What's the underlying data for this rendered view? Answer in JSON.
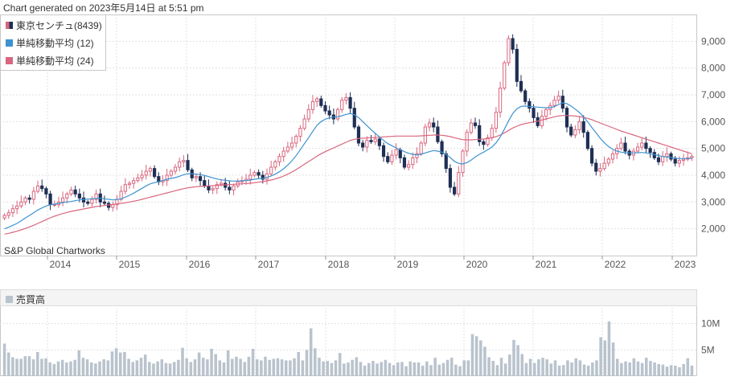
{
  "header": {
    "generated": "Chart generated on 2023年5月14日 at 5:51 pm"
  },
  "legend": [
    {
      "label": "東京センチュ(8439)",
      "color": "#1f2f55"
    },
    {
      "label": "単純移動平均 (12)",
      "color": "#3d93d0"
    },
    {
      "label": "単純移動平均 (24)",
      "color": "#d9667e"
    }
  ],
  "credit": "S&P Global Chartworks",
  "volume_panel": {
    "label": "売買高",
    "color": "#b9c3cd"
  },
  "colors": {
    "up": "#d9667e",
    "down": "#1f2f55",
    "ma12": "#3d93d0",
    "ma24": "#d9667e",
    "grid": "#e1e1e1",
    "volume": "#b9c3cd"
  },
  "chart_data": {
    "type": "candlestick",
    "title": "東京センチュ(8439)",
    "x_ticks": [
      "2014",
      "2015",
      "2016",
      "2017",
      "2018",
      "2019",
      "2020",
      "2021",
      "2022",
      "2023"
    ],
    "y_ticks": [
      "2,000",
      "3,000",
      "4,000",
      "5,000",
      "6,000",
      "7,000",
      "8,000",
      "9,000"
    ],
    "ylim": [
      1000,
      10000
    ],
    "volume_ticks": [
      "5M",
      "10M"
    ],
    "volume_max": 13000000,
    "price_close": [
      2500,
      2600,
      2750,
      2850,
      3000,
      3150,
      3100,
      3400,
      3600,
      3500,
      3300,
      2900,
      2900,
      3000,
      3150,
      3300,
      3450,
      3300,
      3150,
      3000,
      2950,
      3100,
      3300,
      3000,
      2950,
      2800,
      2900,
      3100,
      3400,
      3650,
      3700,
      3800,
      3900,
      4000,
      4150,
      4250,
      3950,
      3750,
      3800,
      4000,
      4150,
      4300,
      4500,
      4550,
      4200,
      3900,
      3950,
      3800,
      3600,
      3450,
      3500,
      3650,
      3700,
      3550,
      3450,
      3600,
      3750,
      3800,
      3850,
      4000,
      4100,
      4000,
      3850,
      4050,
      4300,
      4500,
      4700,
      4900,
      5050,
      5200,
      5450,
      5750,
      6100,
      6450,
      6750,
      6850,
      6600,
      6400,
      6250,
      6100,
      6450,
      6800,
      6900,
      6500,
      5800,
      5200,
      5050,
      5300,
      5250,
      5350,
      5100,
      4700,
      4500,
      4750,
      4950,
      4650,
      4300,
      4400,
      4650,
      4800,
      5200,
      5800,
      5950,
      5800,
      5250,
      4800,
      4250,
      3550,
      3300,
      4100,
      4900,
      5600,
      5950,
      5850,
      5250,
      5150,
      5400,
      5750,
      6350,
      7250,
      8200,
      9100,
      8700,
      7500,
      7150,
      6750,
      6500,
      6150,
      5850,
      6200,
      6450,
      6600,
      6800,
      6950,
      6500,
      5800,
      5500,
      5700,
      6000,
      5600,
      5000,
      4450,
      4150,
      4250,
      4450,
      4600,
      4800,
      5000,
      5200,
      4900,
      4750,
      4900,
      5050,
      5200,
      5000,
      4850,
      4650,
      4500,
      4700,
      4800,
      4600,
      4450,
      4550,
      4600,
      4650,
      4700
    ],
    "ma12": [
      2000,
      2060,
      2130,
      2200,
      2300,
      2400,
      2500,
      2600,
      2700,
      2780,
      2850,
      2900,
      2920,
      2950,
      2980,
      3000,
      3020,
      3050,
      3080,
      3100,
      3110,
      3120,
      3130,
      3140,
      3120,
      3100,
      3080,
      3090,
      3120,
      3180,
      3250,
      3330,
      3420,
      3510,
      3600,
      3680,
      3720,
      3760,
      3800,
      3850,
      3880,
      3910,
      3960,
      4020,
      4050,
      4050,
      4040,
      4020,
      3990,
      3950,
      3900,
      3860,
      3830,
      3810,
      3790,
      3780,
      3780,
      3790,
      3800,
      3820,
      3850,
      3870,
      3880,
      3920,
      3970,
      4040,
      4130,
      4240,
      4380,
      4540,
      4730,
      4950,
      5180,
      5400,
      5640,
      5860,
      6000,
      6090,
      6140,
      6170,
      6180,
      6220,
      6270,
      6300,
      6260,
      6150,
      6000,
      5850,
      5700,
      5560,
      5430,
      5300,
      5180,
      5100,
      5020,
      4950,
      4880,
      4820,
      4780,
      4760,
      4780,
      4830,
      4880,
      4920,
      4900,
      4860,
      4780,
      4660,
      4520,
      4440,
      4420,
      4470,
      4560,
      4680,
      4780,
      4860,
      4950,
      5050,
      5210,
      5430,
      5720,
      6030,
      6300,
      6480,
      6570,
      6580,
      6560,
      6560,
      6540,
      6530,
      6520,
      6520,
      6560,
      6640,
      6700,
      6670,
      6580,
      6470,
      6340,
      6180,
      5990,
      5780,
      5580,
      5380,
      5210,
      5070,
      4970,
      4900,
      4860,
      4840,
      4830,
      4830,
      4840,
      4850,
      4830,
      4800,
      4770,
      4730,
      4700,
      4680,
      4660,
      4640,
      4620,
      4620,
      4620,
      4630
    ],
    "ma24": [
      1800,
      1830,
      1870,
      1910,
      1960,
      2010,
      2070,
      2130,
      2200,
      2270,
      2340,
      2410,
      2470,
      2520,
      2570,
      2610,
      2650,
      2680,
      2710,
      2740,
      2770,
      2800,
      2830,
      2850,
      2870,
      2890,
      2910,
      2930,
      2950,
      2970,
      3000,
      3030,
      3060,
      3100,
      3140,
      3180,
      3220,
      3260,
      3300,
      3340,
      3380,
      3420,
      3460,
      3500,
      3530,
      3550,
      3570,
      3580,
      3590,
      3600,
      3610,
      3620,
      3630,
      3640,
      3650,
      3660,
      3670,
      3680,
      3690,
      3700,
      3720,
      3740,
      3760,
      3790,
      3820,
      3860,
      3910,
      3970,
      4040,
      4120,
      4210,
      4310,
      4410,
      4510,
      4610,
      4710,
      4800,
      4880,
      4950,
      5020,
      5090,
      5160,
      5230,
      5300,
      5340,
      5370,
      5380,
      5390,
      5400,
      5410,
      5420,
      5430,
      5440,
      5450,
      5460,
      5460,
      5460,
      5460,
      5460,
      5460,
      5470,
      5480,
      5490,
      5500,
      5500,
      5490,
      5470,
      5440,
      5400,
      5360,
      5330,
      5320,
      5320,
      5330,
      5340,
      5350,
      5370,
      5400,
      5440,
      5500,
      5580,
      5670,
      5760,
      5830,
      5890,
      5930,
      5960,
      5990,
      6020,
      6060,
      6100,
      6140,
      6180,
      6210,
      6230,
      6230,
      6220,
      6210,
      6190,
      6160,
      6120,
      6070,
      6010,
      5950,
      5890,
      5830,
      5770,
      5710,
      5650,
      5600,
      5550,
      5500,
      5450,
      5400,
      5350,
      5300,
      5250,
      5200,
      5150,
      5100,
      5050,
      5000,
      4950,
      4900,
      4850,
      4800
    ],
    "volume": [
      6.2,
      4.5,
      3.6,
      3.3,
      3.3,
      3.8,
      3.8,
      3.2,
      4.6,
      3.3,
      3.4,
      2.6,
      2.3,
      2.8,
      3.1,
      2.6,
      2.8,
      3.1,
      4.9,
      3.5,
      3.2,
      2.6,
      2.4,
      2.8,
      3.2,
      3.0,
      4.7,
      5.3,
      4.5,
      4.6,
      3.3,
      2.7,
      3.0,
      3.5,
      4.1,
      2.7,
      2.4,
      2.8,
      3.2,
      2.5,
      2.4,
      2.7,
      3.1,
      5.4,
      3.4,
      2.7,
      3.2,
      4.5,
      3.5,
      3.2,
      5.2,
      4.2,
      3.0,
      2.6,
      4.9,
      3.3,
      3.7,
      3.3,
      2.7,
      3.7,
      5.2,
      3.2,
      3.0,
      3.7,
      3.1,
      3.3,
      3.4,
      3.2,
      3.0,
      3.0,
      3.4,
      4.6,
      3.0,
      5.0,
      9.1,
      5.3,
      3.5,
      2.8,
      2.9,
      2.5,
      3.0,
      4.4,
      2.4,
      2.6,
      3.1,
      3.6,
      2.7,
      2.0,
      2.5,
      2.9,
      2.4,
      2.7,
      3.1,
      2.5,
      2.1,
      2.6,
      2.7,
      1.9,
      2.8,
      2.6,
      2.6,
      2.0,
      2.8,
      2.1,
      3.5,
      2.2,
      2.5,
      3.1,
      3.5,
      2.2,
      1.9,
      3.0,
      3.0,
      8.0,
      7.6,
      6.8,
      5.6,
      3.6,
      2.9,
      2.1,
      3.5,
      2.4,
      4.1,
      6.9,
      5.9,
      4.2,
      2.5,
      3.3,
      2.5,
      3.2,
      3.5,
      3.2,
      2.4,
      3.0,
      2.0,
      2.1,
      3.0,
      2.6,
      3.4,
      3.0,
      2.2,
      2.0,
      2.6,
      3.0,
      7.4,
      6.8,
      10.4,
      6.4,
      3.3,
      2.5,
      2.8,
      2.6,
      3.4,
      2.8,
      2.5,
      3.5,
      2.9,
      2.6,
      2.3,
      2.2,
      1.8,
      2.1,
      2.0,
      1.7,
      2.3,
      3.4,
      2.0
    ]
  }
}
